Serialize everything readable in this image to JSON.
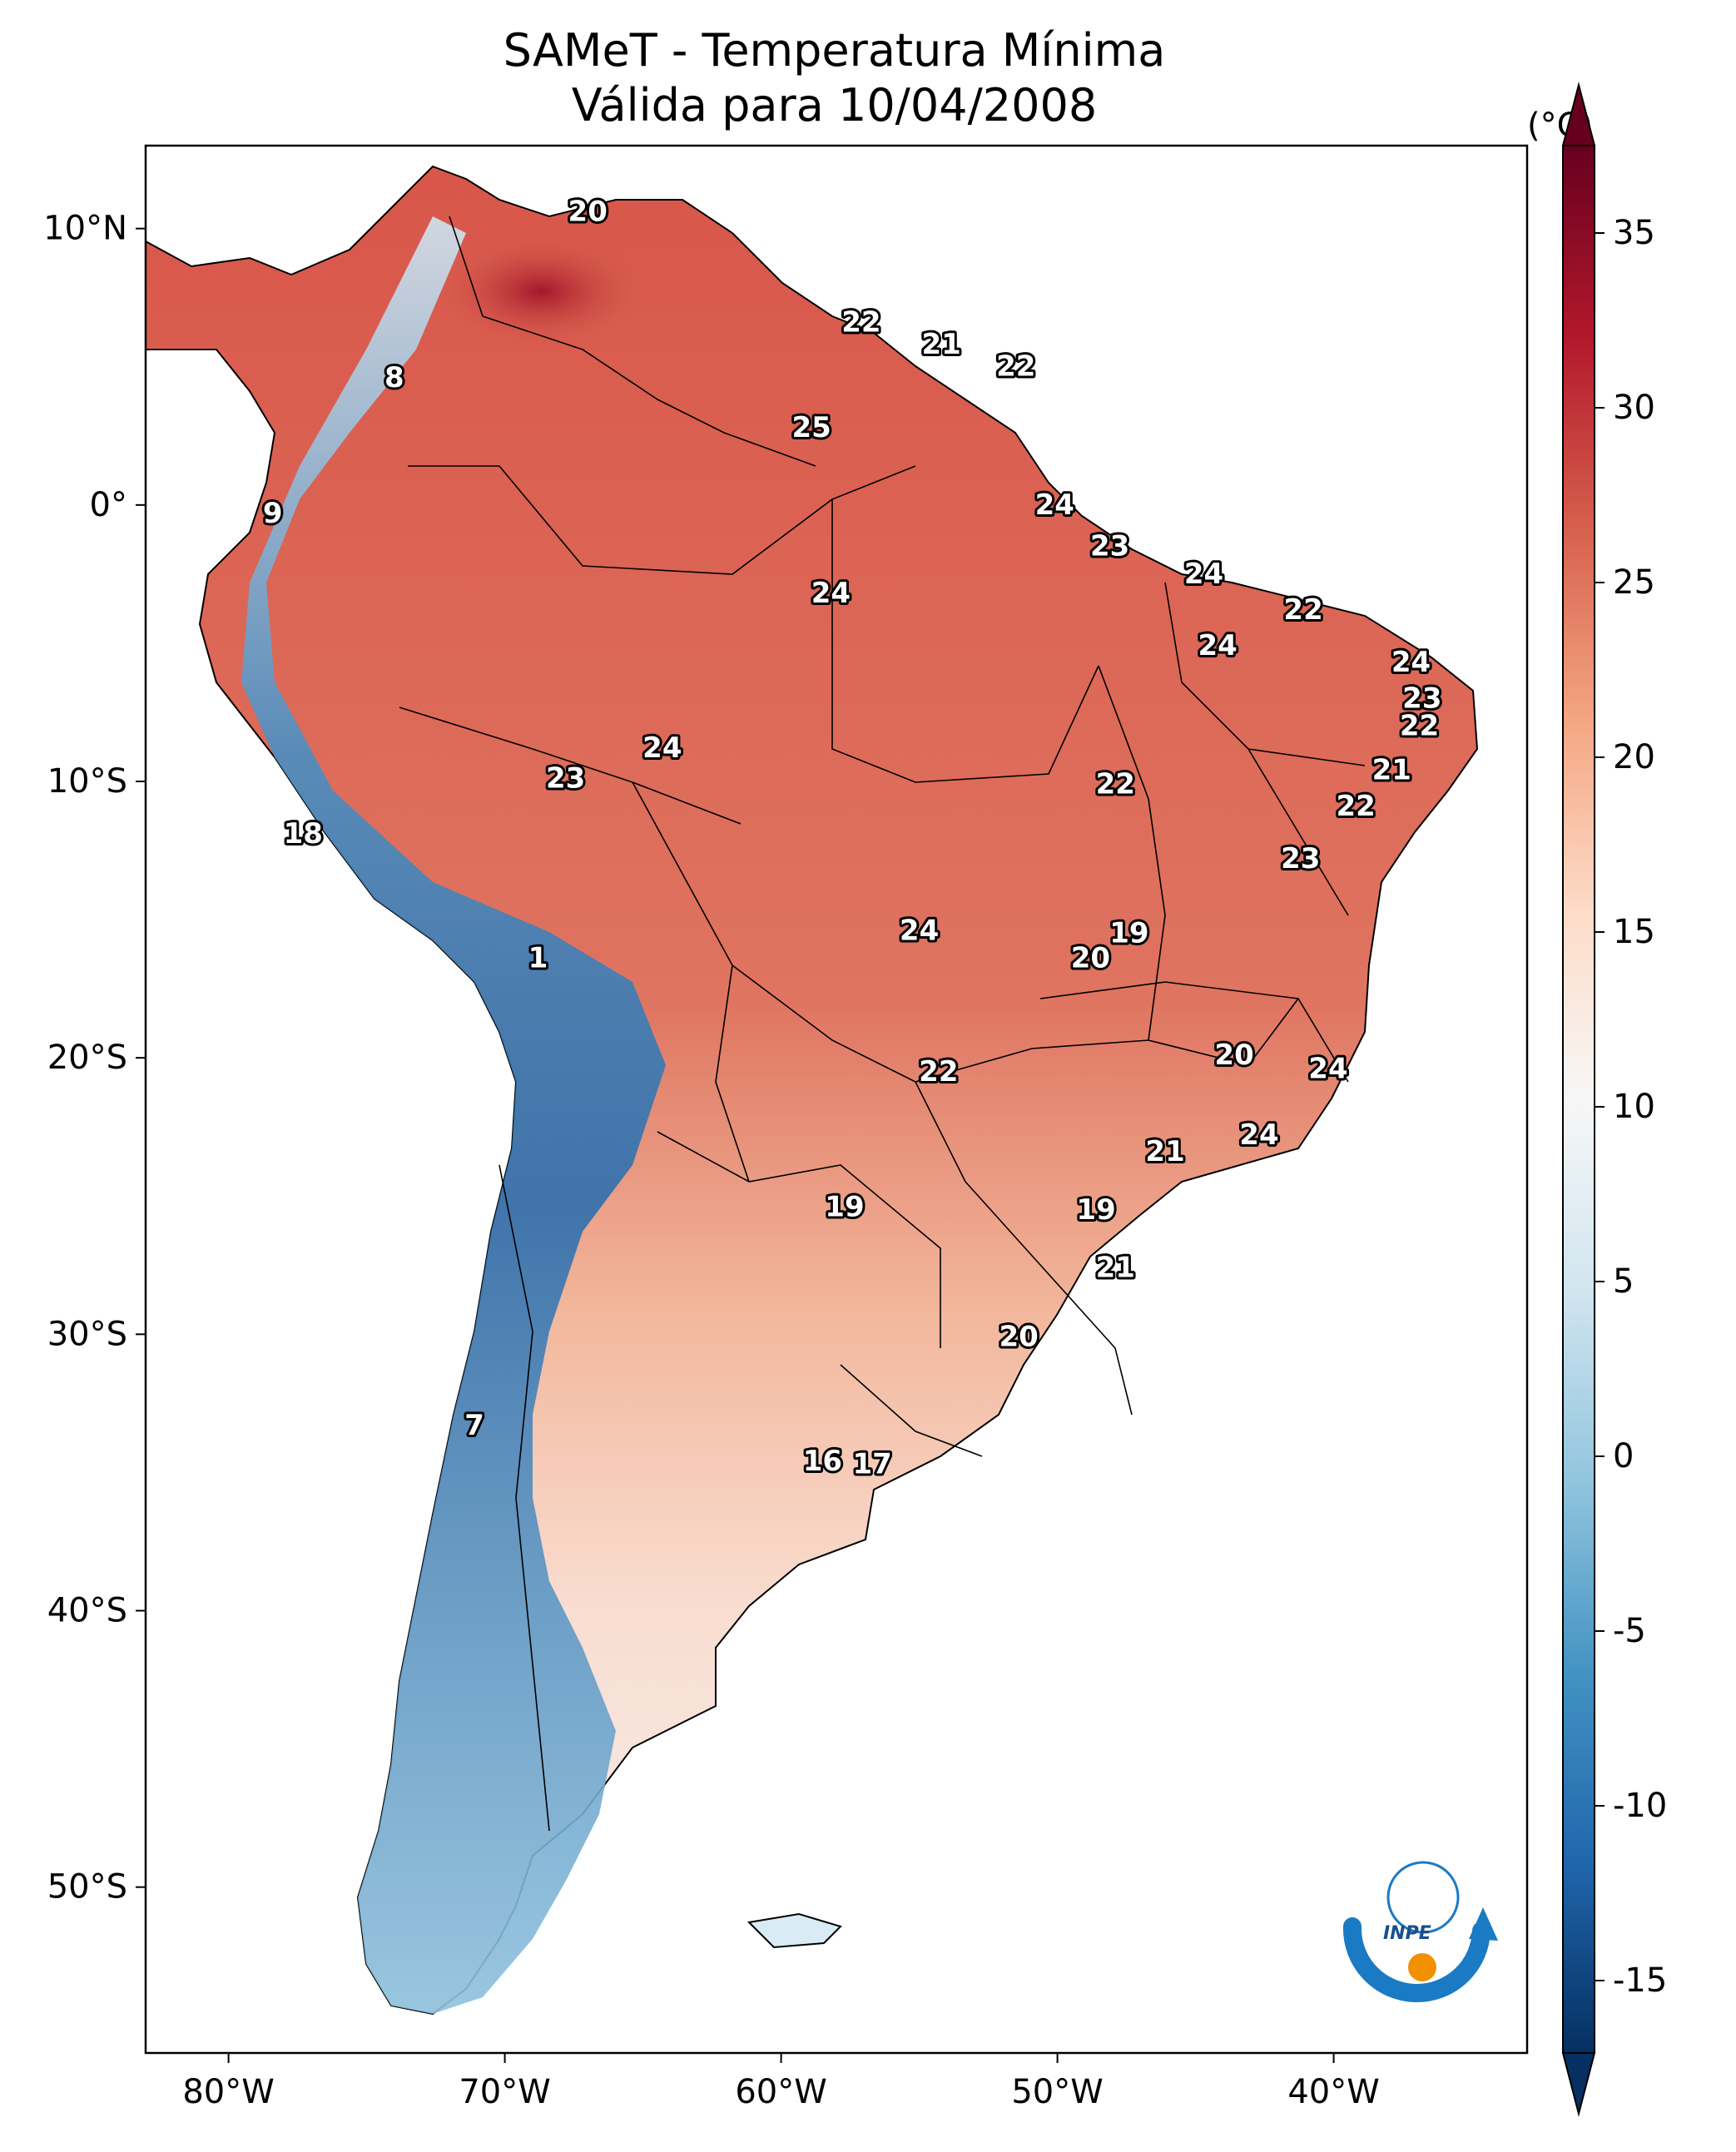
{
  "title_line1": "SAMeT - Temperatura Mínima",
  "title_line2": "Válida para 10/04/2008",
  "colorbar": {
    "unit": "(°C)",
    "min": -15,
    "max": 35,
    "ticks": [
      "35",
      "30",
      "25",
      "20",
      "15",
      "10",
      "5",
      "0",
      "-5",
      "-10",
      "-15"
    ],
    "colors": [
      "#053061",
      "#2166ac",
      "#4393c3",
      "#92c5de",
      "#d1e5f0",
      "#f7f7f7",
      "#fddbc7",
      "#f4a582",
      "#d6604d",
      "#b2182b",
      "#67001f"
    ]
  },
  "axes": {
    "lon_ticks": [
      "80°W",
      "70°W",
      "60°W",
      "50°W",
      "40°W"
    ],
    "lat_ticks": [
      "10°N",
      "0°",
      "10°S",
      "20°S",
      "30°S",
      "40°S",
      "50°S"
    ],
    "lon_range": [
      -83,
      -33
    ],
    "lat_range": [
      -56,
      13
    ]
  },
  "logo": {
    "text": "INPE",
    "colors": {
      "blue": "#1a7ac4",
      "orange": "#f29100"
    }
  },
  "map_labels": [
    {
      "lon": -67.0,
      "lat": 10.6,
      "text": "20"
    },
    {
      "lon": -74.0,
      "lat": 4.6,
      "text": "8"
    },
    {
      "lon": -78.4,
      "lat": -0.3,
      "text": "9"
    },
    {
      "lon": -57.1,
      "lat": 6.6,
      "text": "22"
    },
    {
      "lon": -54.2,
      "lat": 5.8,
      "text": "21"
    },
    {
      "lon": -51.5,
      "lat": 5.0,
      "text": "22"
    },
    {
      "lon": -58.9,
      "lat": 2.8,
      "text": "25"
    },
    {
      "lon": -50.1,
      "lat": 0.0,
      "text": "24"
    },
    {
      "lon": -48.1,
      "lat": -1.5,
      "text": "23"
    },
    {
      "lon": -58.2,
      "lat": -3.2,
      "text": "24"
    },
    {
      "lon": -44.7,
      "lat": -2.5,
      "text": "24"
    },
    {
      "lon": -41.1,
      "lat": -3.8,
      "text": "22"
    },
    {
      "lon": -44.2,
      "lat": -5.1,
      "text": "24"
    },
    {
      "lon": -37.2,
      "lat": -5.7,
      "text": "24"
    },
    {
      "lon": -36.8,
      "lat": -7.0,
      "text": "23"
    },
    {
      "lon": -36.9,
      "lat": -8.0,
      "text": "22"
    },
    {
      "lon": -37.9,
      "lat": -9.6,
      "text": "21"
    },
    {
      "lon": -39.2,
      "lat": -10.9,
      "text": "22"
    },
    {
      "lon": -64.3,
      "lat": -8.8,
      "text": "24"
    },
    {
      "lon": -67.8,
      "lat": -9.9,
      "text": "23"
    },
    {
      "lon": -47.9,
      "lat": -10.1,
      "text": "22"
    },
    {
      "lon": -77.3,
      "lat": -11.9,
      "text": "18"
    },
    {
      "lon": -41.2,
      "lat": -12.8,
      "text": "23"
    },
    {
      "lon": -55.0,
      "lat": -15.4,
      "text": "24"
    },
    {
      "lon": -47.4,
      "lat": -15.5,
      "text": "19"
    },
    {
      "lon": -48.8,
      "lat": -16.4,
      "text": "20"
    },
    {
      "lon": -68.8,
      "lat": -16.4,
      "text": "1"
    },
    {
      "lon": -43.6,
      "lat": -19.9,
      "text": "20"
    },
    {
      "lon": -40.2,
      "lat": -20.4,
      "text": "24"
    },
    {
      "lon": -54.3,
      "lat": -20.5,
      "text": "22"
    },
    {
      "lon": -42.7,
      "lat": -22.8,
      "text": "24"
    },
    {
      "lon": -46.1,
      "lat": -23.4,
      "text": "21"
    },
    {
      "lon": -57.7,
      "lat": -25.4,
      "text": "19"
    },
    {
      "lon": -48.6,
      "lat": -25.5,
      "text": "19"
    },
    {
      "lon": -47.9,
      "lat": -27.6,
      "text": "21"
    },
    {
      "lon": -51.4,
      "lat": -30.1,
      "text": "20"
    },
    {
      "lon": -71.1,
      "lat": -33.3,
      "text": "7"
    },
    {
      "lon": -58.5,
      "lat": -34.6,
      "text": "16"
    },
    {
      "lon": -56.7,
      "lat": -34.7,
      "text": "17"
    }
  ]
}
